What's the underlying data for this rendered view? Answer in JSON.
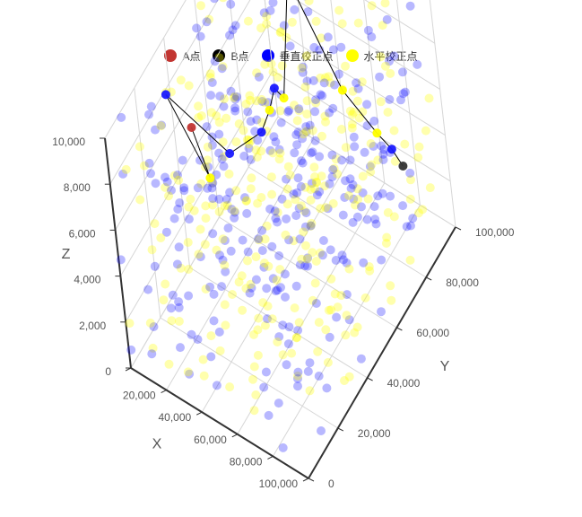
{
  "chart_data": {
    "type": "scatter",
    "dimension": "3d",
    "legend": {
      "placement": "top-center",
      "items": [
        {
          "name": "A点",
          "color": "#c23531"
        },
        {
          "name": "B点",
          "color": "#000000"
        },
        {
          "name": "垂直校正点",
          "color": "#0000ff"
        },
        {
          "name": "水平校正点",
          "color": "#ffff00"
        }
      ]
    },
    "axes": {
      "x": {
        "label": "X",
        "range": [
          0,
          100000
        ],
        "ticks": [
          "20,000",
          "40,000",
          "60,000",
          "80,000",
          "100,000"
        ]
      },
      "y": {
        "label": "Y",
        "range": [
          0,
          100000
        ],
        "ticks": [
          "0",
          "20,000",
          "40,000",
          "60,000",
          "80,000",
          "100,000"
        ]
      },
      "z": {
        "label": "Z",
        "range": [
          0,
          10000
        ],
        "ticks": [
          "0",
          "2,000",
          "4,000",
          "6,000",
          "8,000",
          "10,000"
        ]
      }
    },
    "grid": true,
    "point_A": {
      "x": 0,
      "y": 50000,
      "z": 5000
    },
    "point_B": {
      "x": 100000,
      "y": 74000,
      "z": 5500
    },
    "path": [
      {
        "x": 0,
        "y": 50000,
        "z": 5000,
        "kind": "A"
      },
      {
        "x": 10000,
        "y": 48000,
        "z": 3500,
        "kind": "horizontal"
      },
      {
        "x": 8000,
        "y": 30000,
        "z": 9000,
        "kind": "vertical"
      },
      {
        "x": 32000,
        "y": 40000,
        "z": 6500,
        "kind": "vertical"
      },
      {
        "x": 40000,
        "y": 52000,
        "z": 6500,
        "kind": "vertical"
      },
      {
        "x": 40000,
        "y": 58000,
        "z": 6800,
        "kind": "horizontal"
      },
      {
        "x": 38000,
        "y": 64000,
        "z": 7000,
        "kind": "vertical"
      },
      {
        "x": 41000,
        "y": 66000,
        "z": 6500,
        "kind": "horizontal"
      },
      {
        "x": 30000,
        "y": 86000,
        "z": 9000,
        "kind": "vertical"
      },
      {
        "x": 60000,
        "y": 82000,
        "z": 6000,
        "kind": "horizontal"
      },
      {
        "x": 78000,
        "y": 82000,
        "z": 5000,
        "kind": "horizontal"
      },
      {
        "x": 88000,
        "y": 80000,
        "z": 5000,
        "kind": "vertical"
      },
      {
        "x": 100000,
        "y": 74000,
        "z": 5500,
        "kind": "B"
      }
    ],
    "scatter_series": [
      {
        "name": "垂直校正点",
        "color": "#0000ff",
        "count": 300,
        "distribution": "uniform",
        "x_range": [
          0,
          100000
        ],
        "y_range": [
          0,
          100000
        ],
        "z_range": [
          0,
          10000
        ]
      },
      {
        "name": "水平校正点",
        "color": "#ffff00",
        "count": 300,
        "distribution": "uniform",
        "x_range": [
          0,
          100000
        ],
        "y_range": [
          0,
          100000
        ],
        "z_range": [
          0,
          10000
        ]
      }
    ]
  }
}
